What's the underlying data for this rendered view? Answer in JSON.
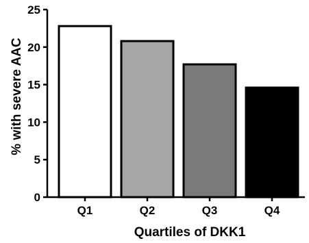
{
  "chart_data": {
    "type": "bar",
    "categories": [
      "Q1",
      "Q2",
      "Q3",
      "Q4"
    ],
    "values": [
      22.8,
      20.8,
      17.7,
      14.6
    ],
    "bar_colors": [
      "#ffffff",
      "#a6a6a6",
      "#7a7a7a",
      "#000000"
    ],
    "xlabel": "Quartiles of DKK1",
    "ylabel": "% with severe AAC",
    "ylim": [
      0,
      25
    ],
    "yticks": [
      0,
      5,
      10,
      15,
      20,
      25
    ],
    "ytick_labels": [
      "0",
      "5",
      "10",
      "15",
      "20",
      "25"
    ],
    "grid": false,
    "legend": "none"
  }
}
